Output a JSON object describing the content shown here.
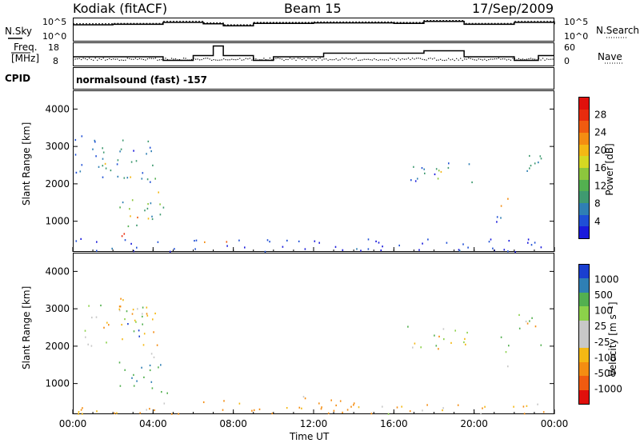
{
  "header": {
    "left": "Kodiak (fitACF)",
    "center": "Beam 15",
    "right": "17/Sep/2009"
  },
  "noise_panel": {
    "left_label": "N.Sky",
    "right_label": "N.Search",
    "tick_top": "10^5",
    "tick_bottom": "10^0",
    "tick_top_right": "10^5",
    "tick_bottom_right": "10^0"
  },
  "freq_panel": {
    "left_label_1": "Freq.",
    "left_label_2": "[MHz]",
    "left_tick_top": "18",
    "left_tick_bottom": "8",
    "right_label": "Nave",
    "right_tick_top": "60",
    "right_tick_bottom": "0"
  },
  "cpid_panel": {
    "label": "CPID",
    "text": "normalsound (fast) -157"
  },
  "colors": {
    "power_scale": [
      "#1a1adc",
      "#1f4fd6",
      "#2f7fb4",
      "#3f9a70",
      "#53b050",
      "#8cc63d",
      "#d6d822",
      "#f4b814",
      "#f48d12",
      "#f05b10",
      "#e82c0e",
      "#e0100c"
    ],
    "velocity_scale": [
      "#e0100c",
      "#f05b10",
      "#f48d12",
      "#f4b814",
      "#c8c8c8",
      "#c8c8c8",
      "#8cd14a",
      "#53b050",
      "#2f7fb4",
      "#1a3fd0"
    ]
  },
  "chart_data": [
    {
      "type": "heatmap",
      "panel": "power",
      "ylabel": "Slant Range [km]",
      "ylim": [
        180,
        4500
      ],
      "xlim": [
        0,
        24
      ],
      "yticks": [
        "1000",
        "2000",
        "3000",
        "4000"
      ],
      "colorbar_label": "Power [dB]",
      "colorbar_ticks": [
        "4",
        "8",
        "12",
        "16",
        "20",
        "24",
        "28"
      ],
      "regions": [
        {
          "t0": 0.1,
          "t1": 4.2,
          "r0": 2000,
          "r1": 3300,
          "v": 8
        },
        {
          "t0": 1.4,
          "t1": 1.9,
          "r0": 2200,
          "r1": 2600,
          "v": 24
        },
        {
          "t0": 2.6,
          "t1": 3.1,
          "r0": 2200,
          "r1": 2600,
          "v": 18
        },
        {
          "t0": 3.7,
          "t1": 4.3,
          "r0": 1700,
          "r1": 2200,
          "v": 18
        },
        {
          "t0": 2.2,
          "t1": 4.6,
          "r0": 700,
          "r1": 1600,
          "v": 12
        },
        {
          "t0": 2.6,
          "t1": 3.8,
          "r0": 900,
          "r1": 1300,
          "v": 24
        },
        {
          "t0": 1.8,
          "t1": 3.2,
          "r0": 600,
          "r1": 750,
          "v": 28
        },
        {
          "t0": 6.5,
          "t1": 8.0,
          "r0": 420,
          "r1": 560,
          "v": 24
        },
        {
          "t0": 16.7,
          "t1": 20.0,
          "r0": 2050,
          "r1": 2600,
          "v": 8
        },
        {
          "t0": 18.0,
          "t1": 19.4,
          "r0": 2100,
          "r1": 2400,
          "v": 16
        },
        {
          "t0": 21.2,
          "t1": 21.9,
          "r0": 1400,
          "r1": 1800,
          "v": 24
        },
        {
          "t0": 21.0,
          "t1": 21.3,
          "r0": 1000,
          "r1": 2500,
          "v": 8
        },
        {
          "t0": 22.2,
          "t1": 23.4,
          "r0": 2000,
          "r1": 2900,
          "v": 8
        },
        {
          "t0": 0.1,
          "t1": 23.9,
          "r0": 200,
          "r1": 550,
          "v": 4
        }
      ]
    },
    {
      "type": "heatmap",
      "panel": "velocity",
      "ylabel": "Slant Range [km]",
      "xlabel": "Time UT",
      "ylim": [
        180,
        4500
      ],
      "xlim": [
        0,
        24
      ],
      "yticks": [
        "1000",
        "2000",
        "3000",
        "4000"
      ],
      "xticks": [
        "00:00",
        "04:00",
        "08:00",
        "12:00",
        "16:00",
        "20:00",
        "00:00"
      ],
      "colorbar_label": "Velocity [m s⁻¹]",
      "colorbar_ticks": [
        "1000",
        "500",
        "100",
        "25",
        "-25",
        "-100",
        "-500",
        "-1000"
      ],
      "regions": [
        {
          "t0": 0.1,
          "t1": 4.2,
          "r0": 2000,
          "r1": 3300,
          "v": 0
        },
        {
          "t0": 1.8,
          "t1": 2.6,
          "r0": 2800,
          "r1": 3300,
          "v": -300
        },
        {
          "t0": 2.7,
          "t1": 3.3,
          "r0": 2100,
          "r1": 2700,
          "v": 800
        },
        {
          "t0": 3.8,
          "t1": 4.3,
          "r0": 1700,
          "r1": 2200,
          "v": 0
        },
        {
          "t0": 2.2,
          "t1": 4.8,
          "r0": 700,
          "r1": 1600,
          "v": 300
        },
        {
          "t0": 6.3,
          "t1": 8.0,
          "r0": 400,
          "r1": 600,
          "v": -200
        },
        {
          "t0": 11.0,
          "t1": 14.0,
          "r0": 250,
          "r1": 700,
          "v": -150
        },
        {
          "t0": 16.6,
          "t1": 20.0,
          "r0": 1950,
          "r1": 2600,
          "v": 0
        },
        {
          "t0": 21.2,
          "t1": 21.7,
          "r0": 1300,
          "r1": 2300,
          "v": 0
        },
        {
          "t0": 22.2,
          "t1": 23.4,
          "r0": 2000,
          "r1": 2900,
          "v": 0
        },
        {
          "t0": 0.1,
          "t1": 23.9,
          "r0": 200,
          "r1": 500,
          "v": -100
        }
      ]
    }
  ],
  "noise_lines": {
    "sky": [
      [
        0,
        3.5
      ],
      [
        2,
        3.6
      ],
      [
        4.5,
        4.0
      ],
      [
        6.5,
        3.7
      ],
      [
        7.5,
        3.3
      ],
      [
        9,
        3.8
      ],
      [
        12,
        3.9
      ],
      [
        16,
        3.8
      ],
      [
        17.5,
        4.2
      ],
      [
        19.5,
        3.6
      ],
      [
        22,
        4.0
      ],
      [
        24,
        3.6
      ]
    ],
    "freq": [
      [
        0,
        12.0
      ],
      [
        4.5,
        10.5
      ],
      [
        6.0,
        12.5
      ],
      [
        7.0,
        16.5
      ],
      [
        7.5,
        12.5
      ],
      [
        9.0,
        10.5
      ],
      [
        10.0,
        12.0
      ],
      [
        12.0,
        12.0
      ],
      [
        12.5,
        13.5
      ],
      [
        14.5,
        13.5
      ],
      [
        17.5,
        14.5
      ],
      [
        19.5,
        12.0
      ],
      [
        22.0,
        10.5
      ],
      [
        23.2,
        12.5
      ],
      [
        24,
        12.5
      ]
    ]
  }
}
